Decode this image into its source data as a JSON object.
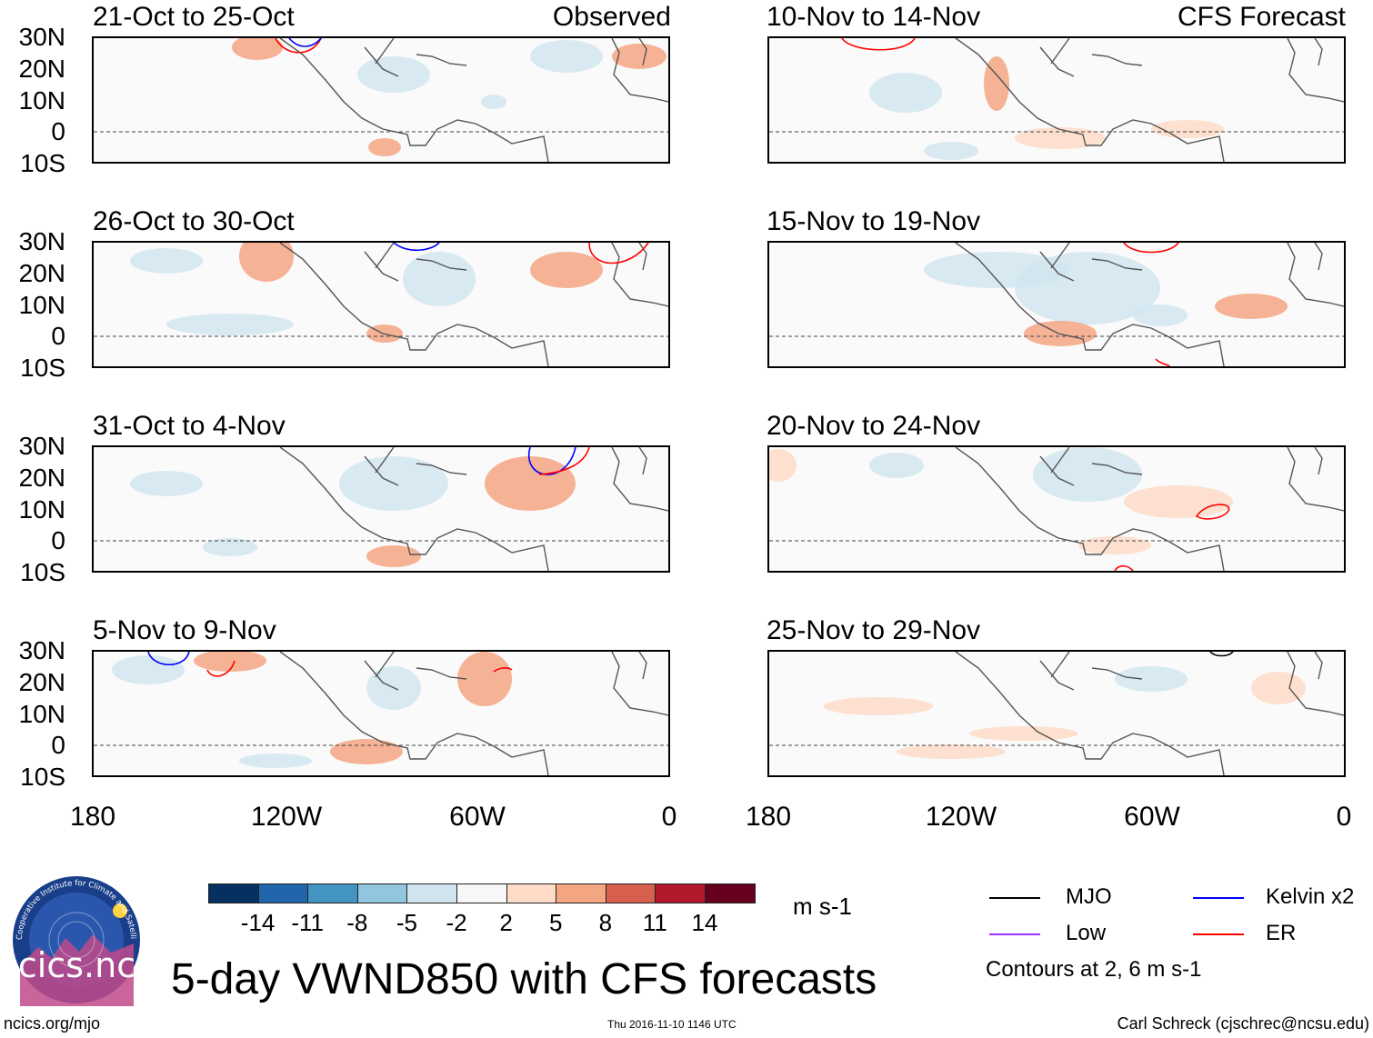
{
  "panels": [
    {
      "title": "21-Oct to 25-Oct",
      "tag": "Observed"
    },
    {
      "title": "10-Nov to 14-Nov",
      "tag": "CFS Forecast"
    },
    {
      "title": "26-Oct to 30-Oct",
      "tag": ""
    },
    {
      "title": "15-Nov to 19-Nov",
      "tag": ""
    },
    {
      "title": "31-Oct to 4-Nov",
      "tag": ""
    },
    {
      "title": "20-Nov to 24-Nov",
      "tag": ""
    },
    {
      "title": "5-Nov to 9-Nov",
      "tag": ""
    },
    {
      "title": "25-Nov to 29-Nov",
      "tag": ""
    }
  ],
  "lat_labels": [
    "30N",
    "20N",
    "10N",
    "0",
    "10S"
  ],
  "lon_labels": [
    "180",
    "120W",
    "60W",
    "0"
  ],
  "colorbar": {
    "colors": [
      "#053061",
      "#2166ac",
      "#4393c3",
      "#92c5de",
      "#d1e5f0",
      "#f7f7f7",
      "#fddbc7",
      "#f4a582",
      "#d6604d",
      "#b2182b",
      "#67001f"
    ],
    "labels": [
      "-14",
      "-11",
      "-8",
      "-5",
      "-2",
      "2",
      "5",
      "8",
      "11",
      "14"
    ],
    "units": "m s-1"
  },
  "legend": {
    "items": [
      {
        "label": "MJO",
        "color": "#000000"
      },
      {
        "label": "Kelvin x2",
        "color": "#0000ff"
      },
      {
        "label": "Low",
        "color": "#9b30ff"
      },
      {
        "label": "ER",
        "color": "#ff0000"
      }
    ],
    "note": "Contours at 2, 6 m s-1"
  },
  "logo_text": "cics.nc",
  "logo_ring_text": "Cooperative Institute for Climate and Satellites",
  "main_title": "5-day VWND850 with CFS forecasts",
  "footer": {
    "left": "ncics.org/mjo",
    "center": "Thu 2016-11-10 1146 UTC",
    "right": "Carl Schreck (cjschrec@ncsu.edu)"
  }
}
